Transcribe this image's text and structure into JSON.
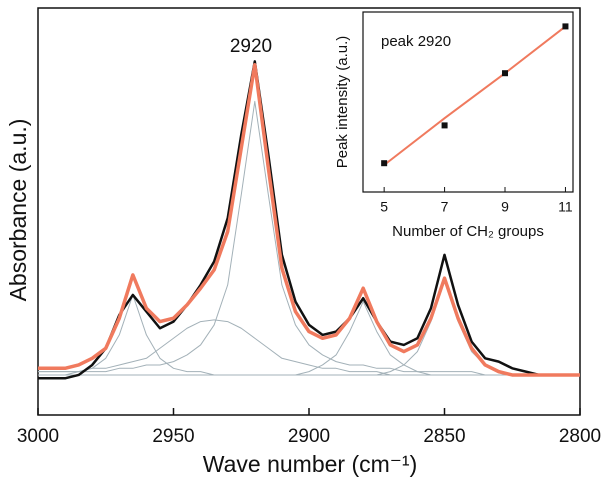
{
  "chart_data": [
    {
      "type": "line",
      "xlabel": "Wave number (cm⁻¹)",
      "ylabel": "Absorbance (a.u.)",
      "annotation": "2920",
      "x": [
        3000,
        2995,
        2990,
        2985,
        2980,
        2975,
        2970,
        2965,
        2960,
        2955,
        2950,
        2945,
        2940,
        2935,
        2930,
        2925,
        2920,
        2915,
        2910,
        2905,
        2900,
        2895,
        2890,
        2885,
        2880,
        2875,
        2870,
        2865,
        2860,
        2855,
        2850,
        2845,
        2840,
        2835,
        2830,
        2825,
        2820,
        2815,
        2810,
        2805,
        2800
      ],
      "xlim": [
        3000,
        2800
      ],
      "xticks": [
        3000,
        2950,
        2900,
        2850,
        2800
      ],
      "ylim": [
        -0.12,
        1.1
      ],
      "series": [
        {
          "color": "#a3b1b8",
          "width": 1,
          "values": [
            0,
            0,
            0,
            0.01,
            0.02,
            0.05,
            0.12,
            0.24,
            0.12,
            0.05,
            0.02,
            0.01,
            0.01,
            0,
            0,
            0,
            0,
            0,
            0,
            0,
            0,
            0,
            0,
            0,
            0,
            0,
            0,
            0,
            0,
            0,
            0,
            0,
            0,
            0,
            0,
            0,
            0,
            0,
            0,
            0,
            0
          ]
        },
        {
          "color": "#a3b1b8",
          "width": 1,
          "values": [
            0.01,
            0.01,
            0.01,
            0.01,
            0.02,
            0.02,
            0.03,
            0.04,
            0.05,
            0.08,
            0.11,
            0.14,
            0.16,
            0.165,
            0.16,
            0.14,
            0.11,
            0.08,
            0.05,
            0.04,
            0.03,
            0.02,
            0.02,
            0.01,
            0.01,
            0.01,
            0,
            0,
            0,
            0,
            0,
            0,
            0,
            0,
            0,
            0,
            0,
            0,
            0,
            0,
            0
          ]
        },
        {
          "color": "#a3b1b8",
          "width": 1,
          "values": [
            0.01,
            0.01,
            0.01,
            0.01,
            0.01,
            0.01,
            0.02,
            0.02,
            0.03,
            0.03,
            0.04,
            0.06,
            0.09,
            0.15,
            0.27,
            0.54,
            0.82,
            0.54,
            0.27,
            0.15,
            0.09,
            0.06,
            0.04,
            0.03,
            0.03,
            0.02,
            0.02,
            0.01,
            0.01,
            0.01,
            0.01,
            0.01,
            0.01,
            0,
            0,
            0,
            0,
            0,
            0,
            0,
            0
          ]
        },
        {
          "color": "#a3b1b8",
          "width": 1,
          "values": [
            0,
            0,
            0,
            0,
            0,
            0,
            0,
            0,
            0,
            0,
            0,
            0,
            0,
            0,
            0,
            0,
            0,
            0,
            0,
            0,
            0.01,
            0.03,
            0.06,
            0.13,
            0.22,
            0.13,
            0.06,
            0.03,
            0.01,
            0,
            0,
            0,
            0,
            0,
            0,
            0,
            0,
            0,
            0,
            0,
            0
          ]
        },
        {
          "color": "#a3b1b8",
          "width": 1,
          "values": [
            0,
            0,
            0,
            0,
            0,
            0,
            0,
            0,
            0,
            0,
            0,
            0,
            0,
            0,
            0,
            0,
            0,
            0,
            0,
            0,
            0,
            0,
            0,
            0,
            0,
            0,
            0.01,
            0.03,
            0.07,
            0.16,
            0.28,
            0.16,
            0.07,
            0.03,
            0.01,
            0,
            0,
            0,
            0,
            0,
            0
          ]
        },
        {
          "color": "#111111",
          "width": 2.5,
          "values": [
            -0.01,
            -0.01,
            -0.01,
            0,
            0.03,
            0.08,
            0.18,
            0.24,
            0.19,
            0.14,
            0.16,
            0.21,
            0.27,
            0.34,
            0.47,
            0.72,
            0.94,
            0.66,
            0.36,
            0.22,
            0.15,
            0.12,
            0.13,
            0.17,
            0.23,
            0.16,
            0.1,
            0.09,
            0.11,
            0.2,
            0.36,
            0.21,
            0.1,
            0.05,
            0.04,
            0.02,
            0.01,
            0,
            0,
            0,
            0
          ]
        },
        {
          "color": "#f07a5e",
          "width": 3.5,
          "values": [
            0.02,
            0.02,
            0.02,
            0.03,
            0.05,
            0.08,
            0.17,
            0.3,
            0.2,
            0.16,
            0.17,
            0.21,
            0.26,
            0.315,
            0.43,
            0.68,
            0.93,
            0.62,
            0.32,
            0.19,
            0.13,
            0.11,
            0.12,
            0.17,
            0.26,
            0.16,
            0.09,
            0.07,
            0.09,
            0.17,
            0.29,
            0.17,
            0.08,
            0.03,
            0.01,
            0,
            0,
            0,
            0,
            0,
            0
          ]
        }
      ]
    },
    {
      "type": "scatter",
      "title": "peak 2920",
      "xlabel": "Number of CH₂ groups",
      "ylabel": "Peak intensity (a.u.)",
      "x": [
        5,
        7,
        9,
        11
      ],
      "values": [
        0.16,
        0.37,
        0.66,
        0.92
      ],
      "color": "#111111",
      "fit": {
        "color": "#f07a5e",
        "values": [
          0.15,
          0.41,
          0.66,
          0.92
        ]
      },
      "xlim": [
        4.3,
        11.25
      ],
      "xticks": [
        5,
        7,
        9,
        11
      ],
      "ylim": [
        0,
        1
      ]
    }
  ]
}
